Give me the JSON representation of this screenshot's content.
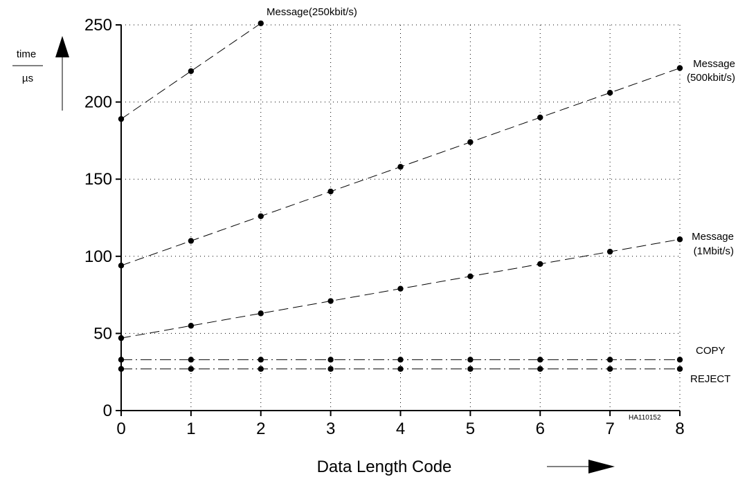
{
  "chart_data": {
    "type": "line",
    "title": "",
    "xlabel": "Data Length Code",
    "ylabel": "time",
    "yunit": "µs",
    "xlim": [
      0,
      8
    ],
    "ylim": [
      0,
      250
    ],
    "x_ticks": [
      "0",
      "1",
      "2",
      "3",
      "4",
      "5",
      "6",
      "7",
      "8"
    ],
    "y_ticks": [
      "0",
      "50",
      "100",
      "150",
      "200",
      "250"
    ],
    "grid": true,
    "figure_id": "HA110152",
    "series": [
      {
        "name": "Message(250kbit/s)",
        "label_lines": [
          "Message(250kbit/s)"
        ],
        "style": "dashed",
        "x": [
          0,
          1,
          2
        ],
        "y": [
          189,
          220,
          251
        ]
      },
      {
        "name": "Message (500kbit/s)",
        "label_lines": [
          "Message",
          "(500kbit/s)"
        ],
        "style": "dashed",
        "x": [
          0,
          1,
          2,
          3,
          4,
          5,
          6,
          7,
          8
        ],
        "y": [
          94,
          110,
          126,
          142,
          158,
          174,
          190,
          206,
          222
        ]
      },
      {
        "name": "Message (1Mbit/s)",
        "label_lines": [
          "Message",
          "(1Mbit/s)"
        ],
        "style": "dashed",
        "x": [
          0,
          1,
          2,
          3,
          4,
          5,
          6,
          7,
          8
        ],
        "y": [
          47,
          55,
          63,
          71,
          79,
          87,
          95,
          103,
          111
        ]
      },
      {
        "name": "COPY",
        "label_lines": [
          "COPY"
        ],
        "style": "dashdot",
        "x": [
          0,
          1,
          2,
          3,
          4,
          5,
          6,
          7,
          8
        ],
        "y": [
          33,
          33,
          33,
          33,
          33,
          33,
          33,
          33,
          33
        ]
      },
      {
        "name": "REJECT",
        "label_lines": [
          "REJECT"
        ],
        "style": "dashdot",
        "x": [
          0,
          1,
          2,
          3,
          4,
          5,
          6,
          7,
          8
        ],
        "y": [
          27,
          27,
          27,
          27,
          27,
          27,
          27,
          27,
          27
        ]
      }
    ]
  }
}
